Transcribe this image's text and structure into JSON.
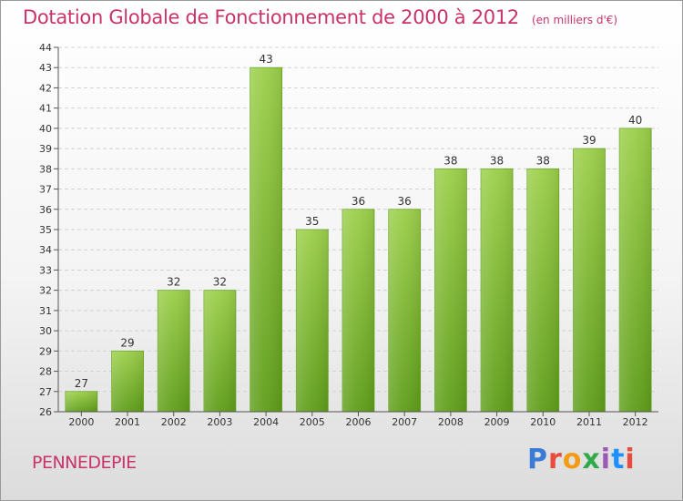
{
  "header": {
    "title": "Dotation Globale de Fonctionnement de 2000 à 2012",
    "unit": "(en milliers d'€)"
  },
  "footer": {
    "commune": "PENNEDEPIE",
    "brand": "Proxiti",
    "brand_colors": [
      "#3a7bd5",
      "#e84c3d",
      "#f39c12",
      "#2eaa4a",
      "#9b59b6",
      "#1e90ff",
      "#e84c3d"
    ]
  },
  "chart_data": {
    "type": "bar",
    "title": "Dotation Globale de Fonctionnement de 2000 à 2012",
    "subtitle": "(en milliers d'€)",
    "categories": [
      "2000",
      "2001",
      "2002",
      "2003",
      "2004",
      "2005",
      "2006",
      "2007",
      "2008",
      "2009",
      "2010",
      "2011",
      "2012"
    ],
    "values": [
      27,
      29,
      32,
      32,
      43,
      35,
      36,
      36,
      38,
      38,
      38,
      39,
      40
    ],
    "ylim": [
      26,
      44
    ],
    "yticks": [
      26,
      27,
      28,
      29,
      30,
      31,
      32,
      33,
      34,
      35,
      36,
      37,
      38,
      39,
      40,
      41,
      42,
      43,
      44
    ],
    "grid": true,
    "bar_color": "#8cc63f",
    "value_labels": true
  }
}
